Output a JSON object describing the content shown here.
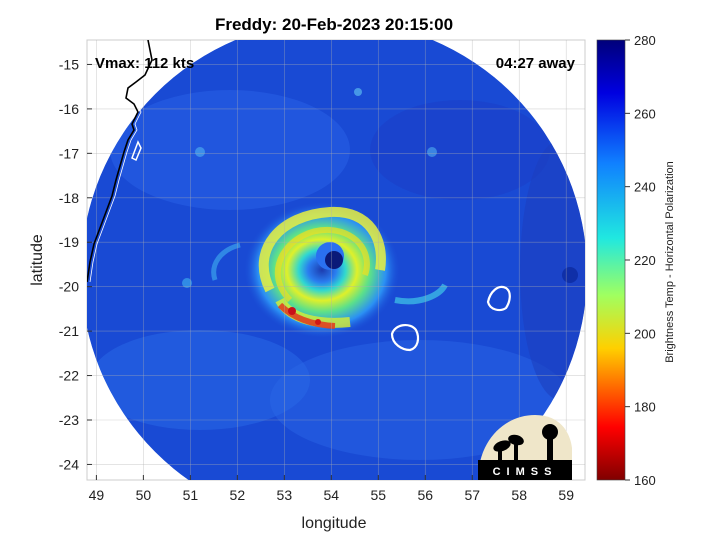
{
  "title": "Freddy: 20-Feb-2023 20:15:00",
  "overlay": {
    "vmax": "Vmax: 112 kts",
    "time_away": "04:27 away"
  },
  "axes": {
    "xlabel": "longitude",
    "ylabel": "latitude",
    "xlim": [
      48.8,
      59.4
    ],
    "ylim": [
      -24.35,
      -14.45
    ],
    "xticks": [
      "49",
      "50",
      "51",
      "52",
      "53",
      "54",
      "55",
      "56",
      "57",
      "58",
      "59"
    ],
    "yticks": [
      "-15",
      "-16",
      "-17",
      "-18",
      "-19",
      "-20",
      "-21",
      "-22",
      "-23",
      "-24"
    ],
    "grid": true
  },
  "colorbar": {
    "label": "Brightness Temp - Horizontal Polarization",
    "min": 160,
    "max": 280,
    "ticks": [
      "280",
      "260",
      "240",
      "220",
      "200",
      "180",
      "160"
    ],
    "colormap": "jet"
  },
  "storm": {
    "eye_lon": 54.0,
    "eye_lat": -19.35,
    "swath_center_lon": 54.0,
    "swath_center_lat": -19.4
  },
  "logo": {
    "text": "CIMSS"
  },
  "colors": {
    "swath_bg": "#1a4fd8",
    "warm_ring": "#e8f020",
    "cold_core": "#c0101a",
    "coast": "#000000",
    "island_outline": "#ffffff"
  }
}
